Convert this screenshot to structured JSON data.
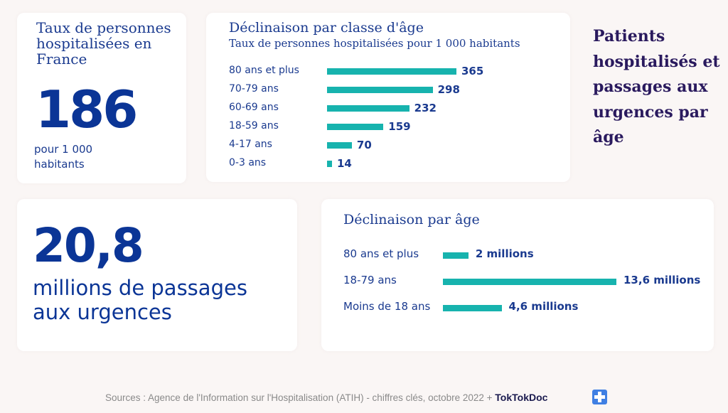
{
  "rate_card": {
    "title": "Taux de personnes hospitalisées en France",
    "value": "186",
    "unit": "pour  1 000 habitants"
  },
  "side_heading": "Patients hospitalisés et passages aux urgences par âge",
  "er_card": {
    "value": "20,8",
    "description": "millions de passages aux urgences"
  },
  "chart_data": [
    {
      "type": "bar",
      "orientation": "horizontal",
      "title": "Déclinaison par classe d'âge",
      "subtitle": "Taux de personnes hospitalisées pour 1 000 habitants",
      "categories": [
        "80 ans et plus",
        "70-79 ans",
        "60-69 ans",
        "18-59 ans",
        "4-17 ans",
        "0-3 ans"
      ],
      "values": [
        365,
        298,
        232,
        159,
        70,
        14
      ],
      "value_labels": [
        "365",
        "298",
        "232",
        "159",
        "70",
        "14"
      ],
      "xlim": [
        0,
        365
      ]
    },
    {
      "type": "bar",
      "orientation": "horizontal",
      "title": "Déclinaison par âge",
      "categories": [
        "80 ans et plus",
        "18-79 ans",
        "Moins de 18 ans"
      ],
      "values": [
        2,
        13.6,
        4.6
      ],
      "value_labels": [
        "2 millions",
        "13,6 millions",
        "4,6 millions"
      ],
      "unit": "millions",
      "xlim": [
        0,
        13.6
      ]
    }
  ],
  "footer": {
    "sources": "Sources : Agence de l'Information sur l'Hospitalisation (ATIH) - chiffres clés, octobre 2022 + ",
    "brand": "TokTokDoc"
  },
  "colors": {
    "bar": "#17b3ae",
    "primary_text": "#1a3a8f",
    "heading": "#2a1a5e"
  },
  "icons": {
    "brand": "plus-cross-icon"
  }
}
